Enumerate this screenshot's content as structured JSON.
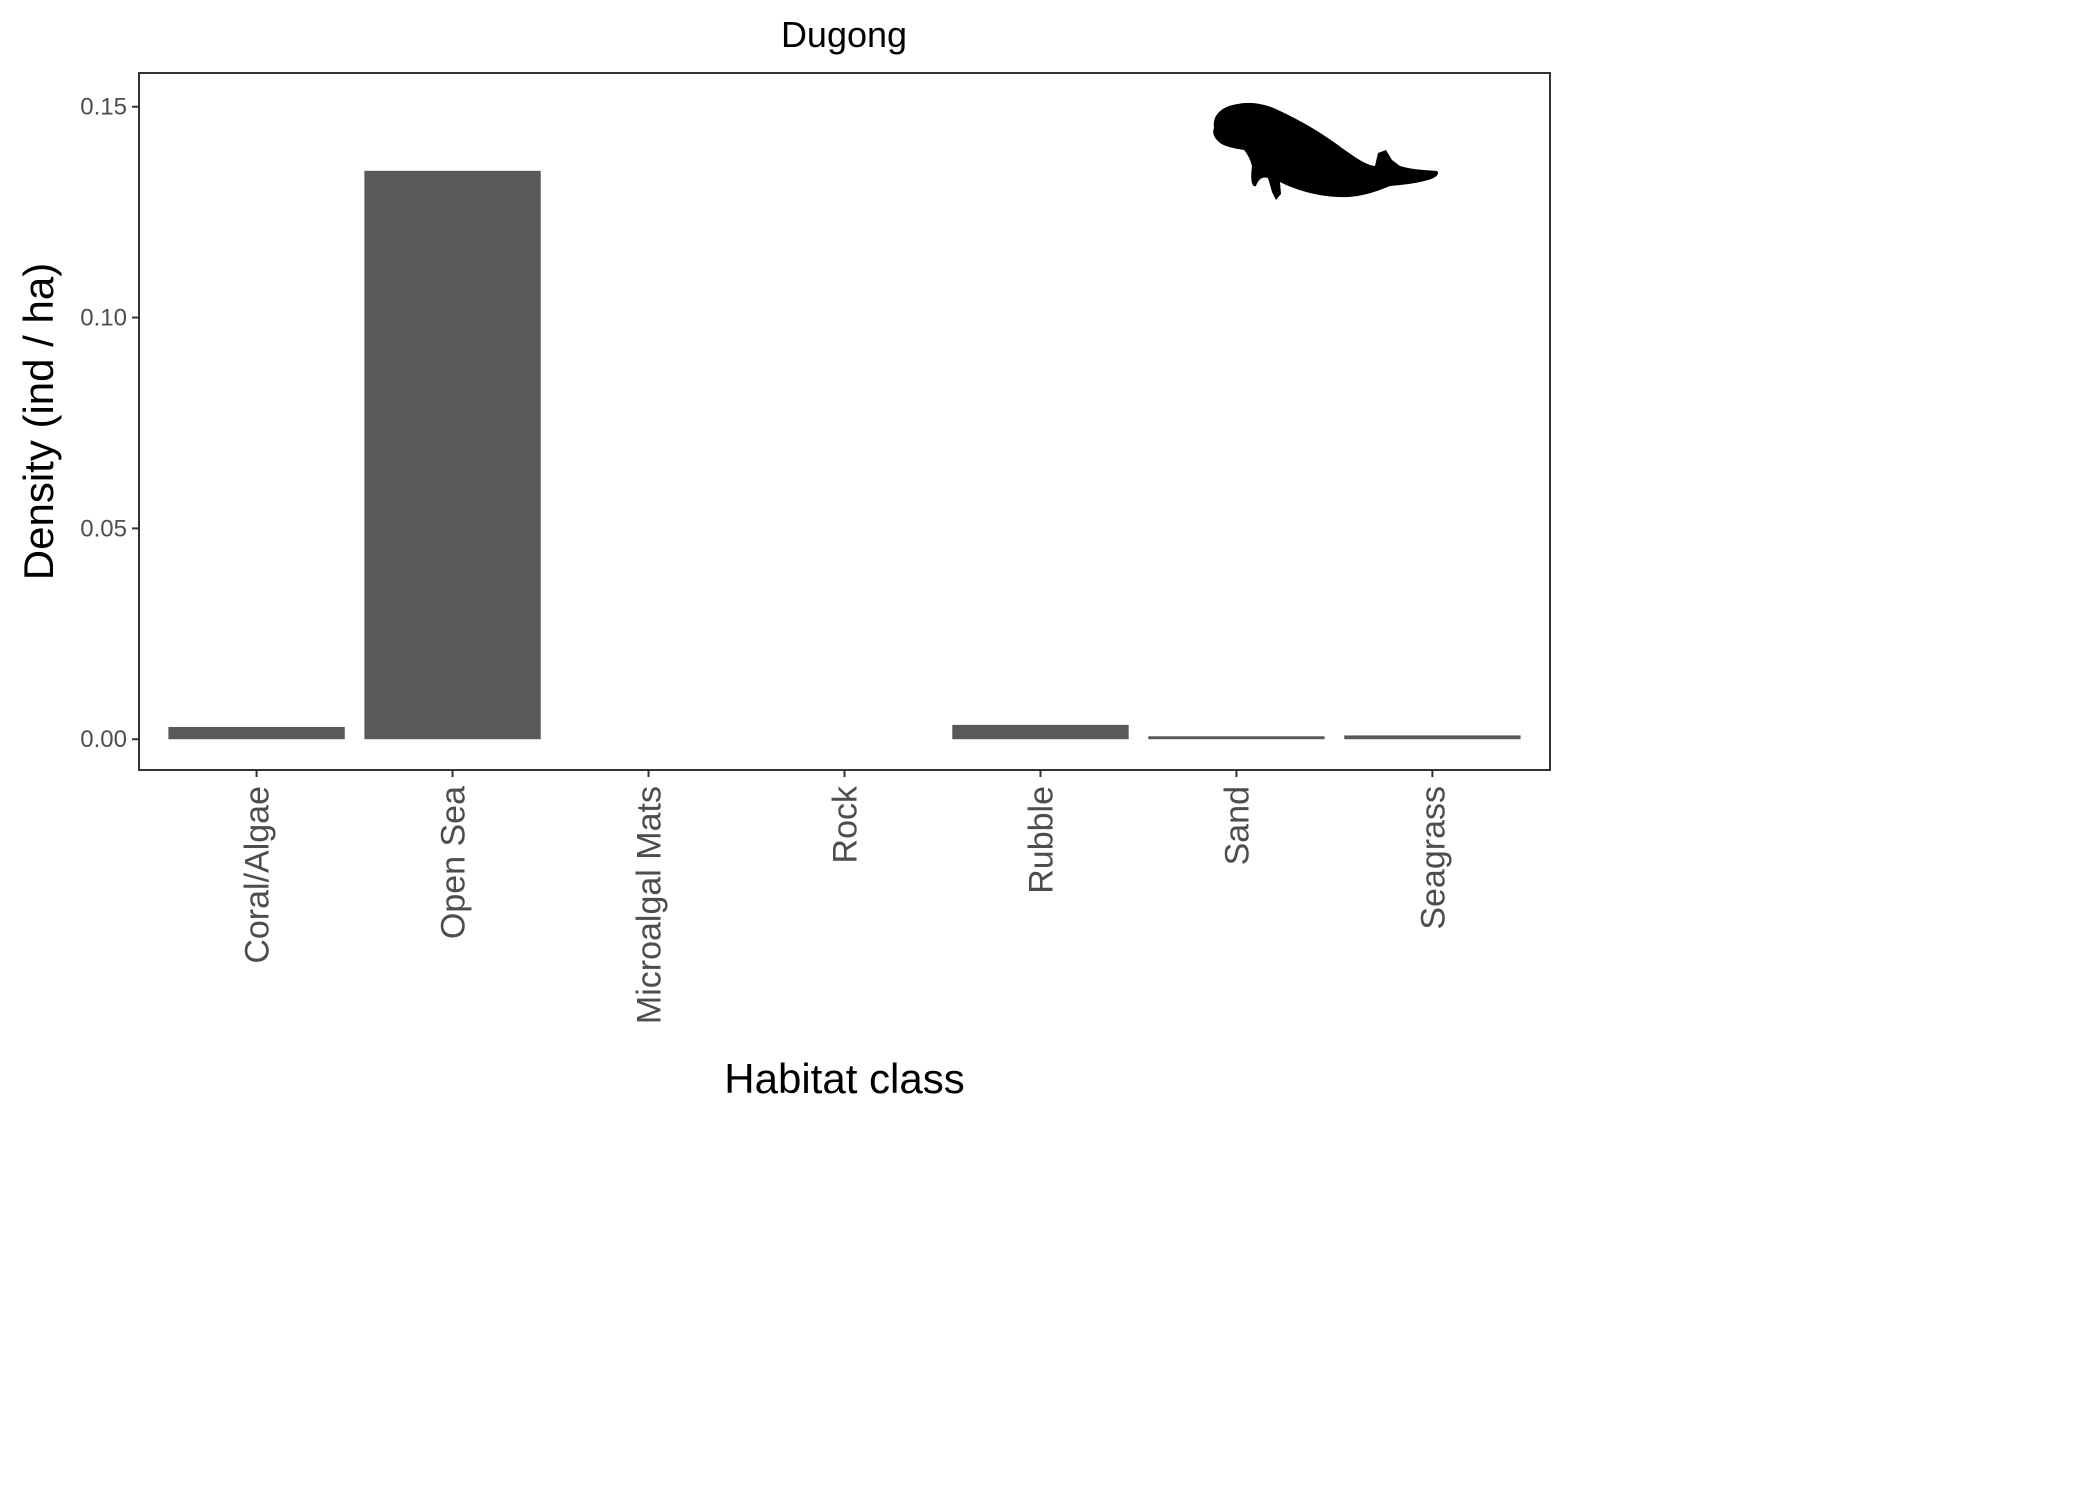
{
  "chart_data": {
    "type": "bar",
    "title": "Dugong",
    "xlabel": "Habitat class",
    "ylabel": "Density (ind / ha)",
    "categories": [
      "Coral/Algae",
      "Open Sea",
      "Microalgal Mats",
      "Rock",
      "Rubble",
      "Sand",
      "Seagrass"
    ],
    "values": [
      0.0029,
      0.1348,
      0,
      0,
      0.0034,
      0.0007,
      0.0009
    ],
    "ylim": [
      -0.0073,
      0.158
    ],
    "yticks": [
      0.0,
      0.05,
      0.1,
      0.15
    ],
    "ytick_labels": [
      "0.00",
      "0.05",
      "0.10",
      "0.15"
    ],
    "grid": false,
    "legend": "none",
    "bar_color": "#595959",
    "theme": "bw"
  },
  "decoration": {
    "silhouette": "dugong-silhouette"
  }
}
